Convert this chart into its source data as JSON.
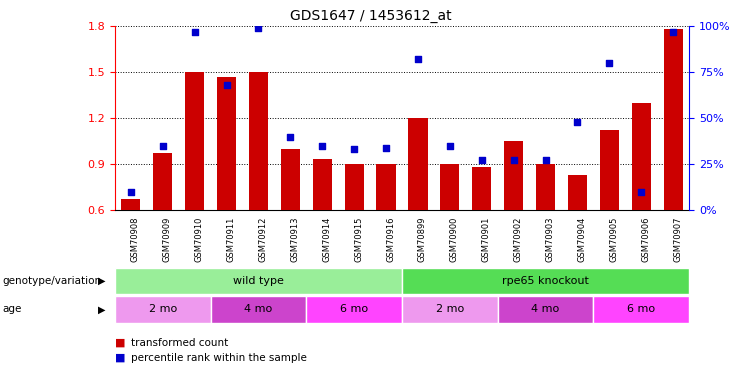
{
  "title": "GDS1647 / 1453612_at",
  "samples": [
    "GSM70908",
    "GSM70909",
    "GSM70910",
    "GSM70911",
    "GSM70912",
    "GSM70913",
    "GSM70914",
    "GSM70915",
    "GSM70916",
    "GSM70899",
    "GSM70900",
    "GSM70901",
    "GSM70902",
    "GSM70903",
    "GSM70904",
    "GSM70905",
    "GSM70906",
    "GSM70907"
  ],
  "bar_values": [
    0.67,
    0.97,
    1.5,
    1.47,
    1.5,
    1.0,
    0.93,
    0.9,
    0.9,
    1.2,
    0.9,
    0.88,
    1.05,
    0.9,
    0.83,
    1.12,
    1.3,
    1.78
  ],
  "dot_values": [
    10,
    35,
    97,
    68,
    99,
    40,
    35,
    33,
    34,
    82,
    35,
    27,
    27,
    27,
    48,
    80,
    10,
    97
  ],
  "ylim_left": [
    0.6,
    1.8
  ],
  "ylim_right": [
    0,
    100
  ],
  "yticks_left": [
    0.6,
    0.9,
    1.2,
    1.5,
    1.8
  ],
  "yticks_right": [
    0,
    25,
    50,
    75,
    100
  ],
  "ytick_labels_right": [
    "0%",
    "25%",
    "50%",
    "75%",
    "100%"
  ],
  "bar_color": "#cc0000",
  "dot_color": "#0000cc",
  "background_color": "#ffffff",
  "genotype_label1": "wild type",
  "genotype_label2": "rpe65 knockout",
  "genotype_color1": "#99ee99",
  "genotype_color2": "#55dd55",
  "age_color1": "#ee99ee",
  "age_color2": "#cc44cc",
  "age_color3": "#ff44ff",
  "legend_bar_label": "transformed count",
  "legend_dot_label": "percentile rank within the sample",
  "label_genotype": "genotype/variation",
  "label_age": "age"
}
